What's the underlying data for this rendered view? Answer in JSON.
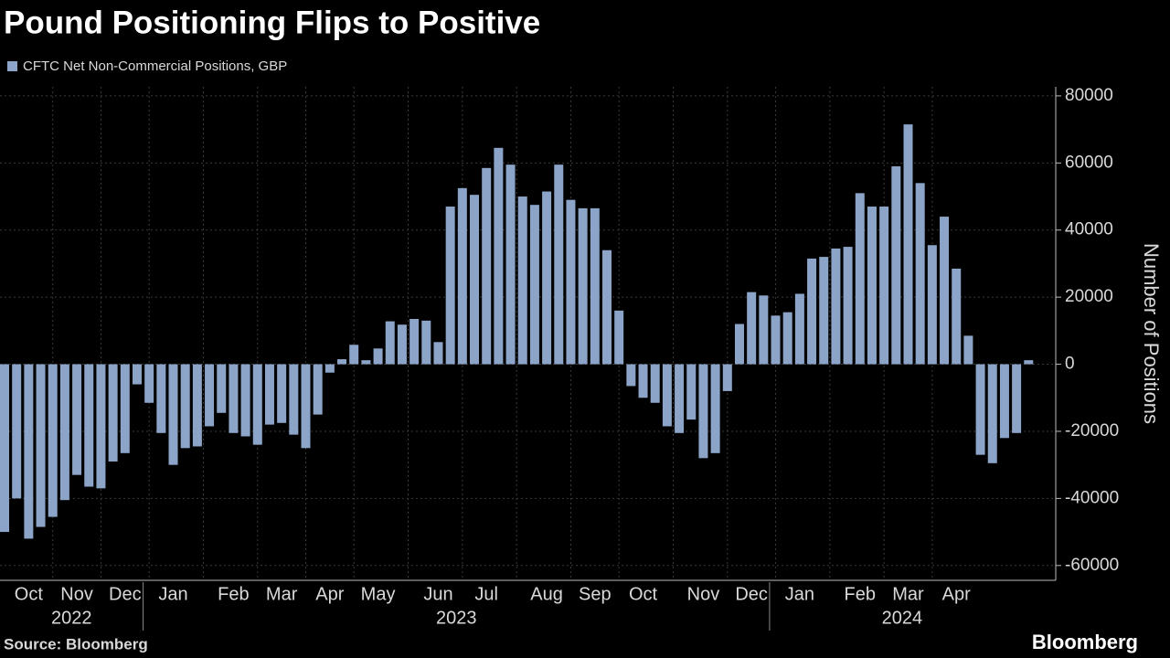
{
  "chart_data": {
    "type": "bar",
    "title": "Pound Positioning Flips to Positive",
    "legend": "CFTC Net Non-Commercial Positions, GBP",
    "y_axis_label": "Number of Positions",
    "source": "Source: Bloomberg",
    "brand": "Bloomberg",
    "color": "#8ca4c8",
    "grid": true,
    "ylim": [
      -63600,
      82700
    ],
    "yticks": [
      -60000,
      -40000,
      -20000,
      0,
      20000,
      40000,
      60000,
      80000
    ],
    "categories": [
      null,
      null,
      "Oct",
      null,
      null,
      null,
      "Nov",
      null,
      null,
      null,
      "Dec",
      null,
      null,
      null,
      "Jan",
      null,
      null,
      null,
      null,
      "Feb",
      null,
      null,
      null,
      "Mar",
      null,
      null,
      null,
      "Apr",
      null,
      null,
      null,
      "May",
      null,
      null,
      null,
      null,
      "Jun",
      null,
      null,
      null,
      "Jul",
      null,
      null,
      null,
      null,
      "Aug",
      null,
      null,
      null,
      "Sep",
      null,
      null,
      null,
      "Oct",
      null,
      null,
      null,
      null,
      "Nov",
      null,
      null,
      null,
      "Dec",
      null,
      null,
      null,
      "Jan",
      null,
      null,
      null,
      null,
      "Feb",
      null,
      null,
      null,
      "Mar",
      null,
      null,
      null,
      "Apr",
      null,
      null,
      null,
      null,
      null,
      null
    ],
    "years": [
      {
        "label": "2022",
        "from": 0,
        "to": 11
      },
      {
        "label": "2023",
        "from": 12,
        "to": 63
      },
      {
        "label": "2024",
        "from": 64,
        "to": 85
      }
    ],
    "values": [
      -50000,
      -40000,
      -52000,
      -48500,
      -45500,
      -40500,
      -33000,
      -36500,
      -37000,
      -29000,
      -26500,
      -6000,
      -11500,
      -20500,
      -30000,
      -25000,
      -24500,
      -18500,
      -14500,
      -20500,
      -21500,
      -24000,
      -18000,
      -17500,
      -21000,
      -25000,
      -15000,
      -2500,
      1500,
      5800,
      1200,
      4700,
      12800,
      11800,
      13500,
      13000,
      6600,
      47000,
      52500,
      50500,
      58500,
      64500,
      59500,
      50000,
      47500,
      51500,
      59500,
      49000,
      46500,
      46500,
      34000,
      16000,
      -6500,
      -10000,
      -11500,
      -18500,
      -20500,
      -16500,
      -28000,
      -26500,
      -8000,
      12000,
      21500,
      20500,
      14500,
      15500,
      21000,
      31500,
      32000,
      34500,
      35000,
      51000,
      47000,
      47000,
      59000,
      71500,
      54000,
      35500,
      44000,
      28500,
      8500,
      -27000,
      -29500,
      -22000,
      -20500,
      1200
    ]
  }
}
